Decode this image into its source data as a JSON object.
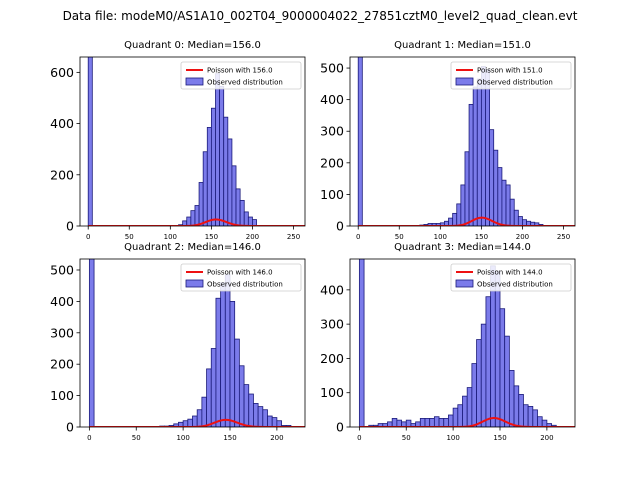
{
  "suptitle": "Data file: modeM0/AS1A10_002T04_9000004022_27851cztM0_level2_quad_clean.evt",
  "colors": {
    "bar_fill": "#7b7bea",
    "bar_edge": "#1a1a7a",
    "curve": "#ee1111",
    "axis": "#000000"
  },
  "chart_data": [
    {
      "type": "bar",
      "title": "Quadrant 0: Median=156.0",
      "legend": {
        "curve_label": "Poisson with 156.0",
        "bars_label": "Observed distribution",
        "position": "top-right"
      },
      "xlim": [
        -10,
        264
      ],
      "ylim": [
        0,
        660
      ],
      "xticks": [
        0,
        50,
        100,
        150,
        200,
        250
      ],
      "yticks": [
        0,
        200,
        400,
        600
      ],
      "spike": {
        "x": 0,
        "height": 660
      },
      "bin_width": 5,
      "bins": [
        [
          110,
          5
        ],
        [
          115,
          20
        ],
        [
          120,
          35
        ],
        [
          125,
          60
        ],
        [
          130,
          80
        ],
        [
          135,
          170
        ],
        [
          140,
          290
        ],
        [
          145,
          385
        ],
        [
          150,
          460
        ],
        [
          155,
          595
        ],
        [
          160,
          545
        ],
        [
          165,
          425
        ],
        [
          170,
          340
        ],
        [
          175,
          235
        ],
        [
          180,
          145
        ],
        [
          185,
          100
        ],
        [
          190,
          55
        ],
        [
          195,
          35
        ],
        [
          200,
          25
        ]
      ],
      "poisson_mean": 156.0,
      "poisson_scale": 5
    },
    {
      "type": "bar",
      "title": "Quadrant 1: Median=151.0",
      "legend": {
        "curve_label": "Poisson with 151.0",
        "bars_label": "Observed distribution",
        "position": "top-right"
      },
      "xlim": [
        -10,
        264
      ],
      "ylim": [
        0,
        535
      ],
      "xticks": [
        0,
        50,
        100,
        150,
        200,
        250
      ],
      "yticks": [
        0,
        100,
        200,
        300,
        400,
        500
      ],
      "spike": {
        "x": 0,
        "height": 535
      },
      "bin_width": 5,
      "bins": [
        [
          75,
          3
        ],
        [
          80,
          5
        ],
        [
          85,
          8
        ],
        [
          90,
          8
        ],
        [
          95,
          8
        ],
        [
          100,
          10
        ],
        [
          105,
          15
        ],
        [
          110,
          25
        ],
        [
          115,
          40
        ],
        [
          120,
          70
        ],
        [
          125,
          130
        ],
        [
          130,
          235
        ],
        [
          135,
          385
        ],
        [
          140,
          440
        ],
        [
          145,
          465
        ],
        [
          150,
          505
        ],
        [
          155,
          495
        ],
        [
          160,
          305
        ],
        [
          165,
          240
        ],
        [
          170,
          185
        ],
        [
          175,
          145
        ],
        [
          180,
          130
        ],
        [
          185,
          85
        ],
        [
          190,
          50
        ],
        [
          195,
          30
        ],
        [
          200,
          20
        ],
        [
          205,
          15
        ],
        [
          210,
          12
        ],
        [
          215,
          10
        ],
        [
          220,
          5
        ]
      ],
      "poisson_mean": 151.0,
      "poisson_scale": 5
    },
    {
      "type": "bar",
      "title": "Quadrant 2: Median=146.0",
      "legend": {
        "curve_label": "Poisson with 146.0",
        "bars_label": "Observed distribution",
        "position": "top-right"
      },
      "xlim": [
        -10,
        230
      ],
      "ylim": [
        0,
        535
      ],
      "xticks": [
        0,
        50,
        100,
        150,
        200
      ],
      "yticks": [
        0,
        100,
        200,
        300,
        400,
        500
      ],
      "spike": {
        "x": 0,
        "height": 535
      },
      "bin_width": 5,
      "bins": [
        [
          75,
          3
        ],
        [
          80,
          3
        ],
        [
          85,
          5
        ],
        [
          90,
          10
        ],
        [
          95,
          15
        ],
        [
          100,
          20
        ],
        [
          105,
          25
        ],
        [
          110,
          35
        ],
        [
          115,
          55
        ],
        [
          120,
          95
        ],
        [
          125,
          185
        ],
        [
          130,
          250
        ],
        [
          135,
          410
        ],
        [
          140,
          460
        ],
        [
          145,
          485
        ],
        [
          150,
          400
        ],
        [
          155,
          280
        ],
        [
          160,
          195
        ],
        [
          165,
          135
        ],
        [
          170,
          105
        ],
        [
          175,
          75
        ],
        [
          180,
          65
        ],
        [
          185,
          55
        ],
        [
          190,
          35
        ],
        [
          195,
          30
        ],
        [
          200,
          20
        ],
        [
          205,
          5
        ],
        [
          210,
          5
        ]
      ],
      "poisson_mean": 146.0,
      "poisson_scale": 5
    },
    {
      "type": "bar",
      "title": "Quadrant 3: Median=144.0",
      "legend": {
        "curve_label": "Poisson with 144.0",
        "bars_label": "Observed distribution",
        "position": "top-right"
      },
      "xlim": [
        -10,
        230
      ],
      "ylim": [
        0,
        490
      ],
      "xticks": [
        0,
        50,
        100,
        150,
        200
      ],
      "yticks": [
        0,
        100,
        200,
        300,
        400
      ],
      "spike": {
        "x": 0,
        "height": 490
      },
      "bin_width": 5,
      "bins": [
        [
          10,
          5
        ],
        [
          15,
          5
        ],
        [
          20,
          10
        ],
        [
          25,
          10
        ],
        [
          30,
          15
        ],
        [
          35,
          25
        ],
        [
          40,
          20
        ],
        [
          45,
          15
        ],
        [
          50,
          20
        ],
        [
          55,
          10
        ],
        [
          60,
          15
        ],
        [
          65,
          25
        ],
        [
          70,
          25
        ],
        [
          75,
          25
        ],
        [
          80,
          30
        ],
        [
          85,
          25
        ],
        [
          90,
          25
        ],
        [
          95,
          35
        ],
        [
          100,
          55
        ],
        [
          105,
          65
        ],
        [
          110,
          90
        ],
        [
          115,
          115
        ],
        [
          120,
          185
        ],
        [
          125,
          255
        ],
        [
          130,
          300
        ],
        [
          135,
          380
        ],
        [
          140,
          470
        ],
        [
          145,
          455
        ],
        [
          150,
          345
        ],
        [
          155,
          265
        ],
        [
          160,
          165
        ],
        [
          165,
          120
        ],
        [
          170,
          95
        ],
        [
          175,
          65
        ],
        [
          180,
          60
        ],
        [
          185,
          50
        ],
        [
          190,
          30
        ],
        [
          195,
          20
        ],
        [
          200,
          10
        ],
        [
          205,
          5
        ]
      ],
      "poisson_mean": 144.0,
      "poisson_scale": 5
    }
  ]
}
